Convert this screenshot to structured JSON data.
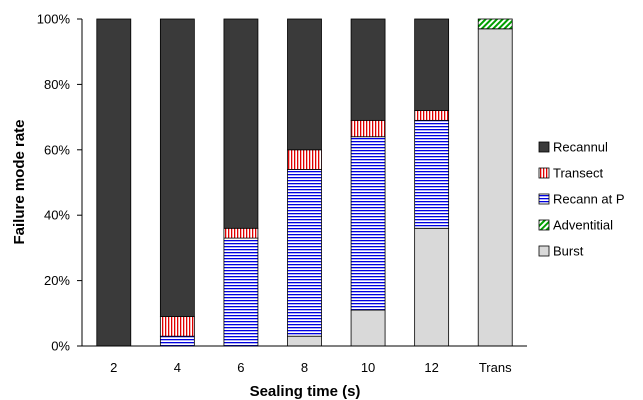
{
  "chart_data": {
    "type": "bar",
    "stacked": true,
    "categories": [
      "2",
      "4",
      "6",
      "8",
      "10",
      "12",
      "Trans"
    ],
    "series": [
      {
        "name": "Burst",
        "key": "burst",
        "color": "#d9d9d9",
        "pattern": "solid-light",
        "values": [
          0,
          0,
          0,
          3,
          11,
          36,
          97
        ]
      },
      {
        "name": "Adventitial",
        "key": "adventitial",
        "color": "#00a000",
        "pattern": "diagonal",
        "values": [
          0,
          0,
          0,
          0,
          0,
          0,
          3
        ]
      },
      {
        "name": "Recann at P",
        "key": "recann_p",
        "color": "#0000e0",
        "pattern": "horizontal",
        "values": [
          0,
          3,
          33,
          51,
          53,
          33,
          0
        ]
      },
      {
        "name": "Transect",
        "key": "transect",
        "color": "#e00000",
        "pattern": "vertical",
        "values": [
          0,
          6,
          3,
          6,
          5,
          3,
          0
        ]
      },
      {
        "name": "Recannul",
        "key": "recannul",
        "color": "#3a3a3a",
        "pattern": "solid-dark",
        "values": [
          100,
          91,
          64,
          40,
          31,
          28,
          0
        ]
      }
    ],
    "legend_order": [
      "recannul",
      "transect",
      "recann_p",
      "adventitial",
      "burst"
    ],
    "xlabel": "Sealing time (s)",
    "ylabel": "Failure mode rate",
    "ylim": [
      0,
      100
    ],
    "yticks": [
      "0%",
      "20%",
      "40%",
      "60%",
      "80%",
      "100%"
    ],
    "legend_position": "right",
    "grid": false
  }
}
